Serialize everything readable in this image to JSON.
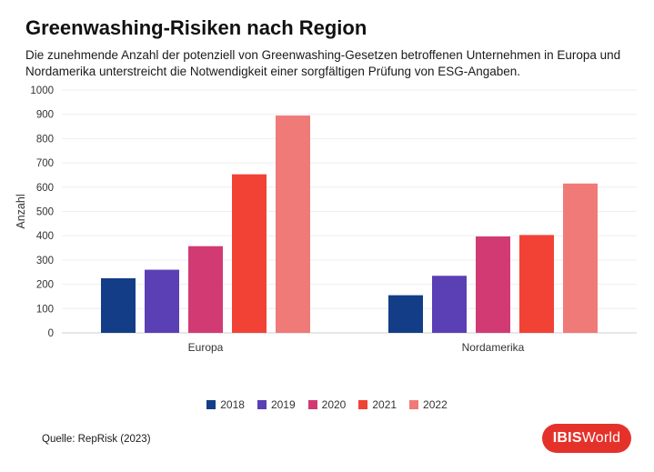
{
  "header": {
    "title": "Greenwashing-Risiken nach Region",
    "subtitle": "Die zunehmende Anzahl der potenziell von Greenwashing-Gesetzen betroffenen Unternehmen in Europa und Nordamerika unterstreicht die Notwendigkeit einer sorgfältigen Prüfung von ESG-Angaben."
  },
  "chart_data": {
    "type": "bar",
    "title": "Greenwashing-Risiken nach Region",
    "xlabel": "",
    "ylabel": "Anzahl",
    "categories": [
      "Europa",
      "Nordamerika"
    ],
    "series": [
      {
        "name": "2018",
        "color": "#133e87",
        "values": [
          225,
          155
        ]
      },
      {
        "name": "2019",
        "color": "#5b3fb5",
        "values": [
          260,
          235
        ]
      },
      {
        "name": "2020",
        "color": "#d23a73",
        "values": [
          357,
          397
        ]
      },
      {
        "name": "2021",
        "color": "#f24236",
        "values": [
          653,
          403
        ]
      },
      {
        "name": "2022",
        "color": "#f07a78",
        "values": [
          895,
          615
        ]
      }
    ],
    "ylim": [
      0,
      1000
    ],
    "yticks": [
      0,
      100,
      200,
      300,
      400,
      500,
      600,
      700,
      800,
      900,
      1000
    ],
    "grid": true,
    "legend_position": "bottom"
  },
  "footer": {
    "source": "Quelle: RepRisk (2023)",
    "logo_bold": "IBIS",
    "logo_rest": "World"
  }
}
